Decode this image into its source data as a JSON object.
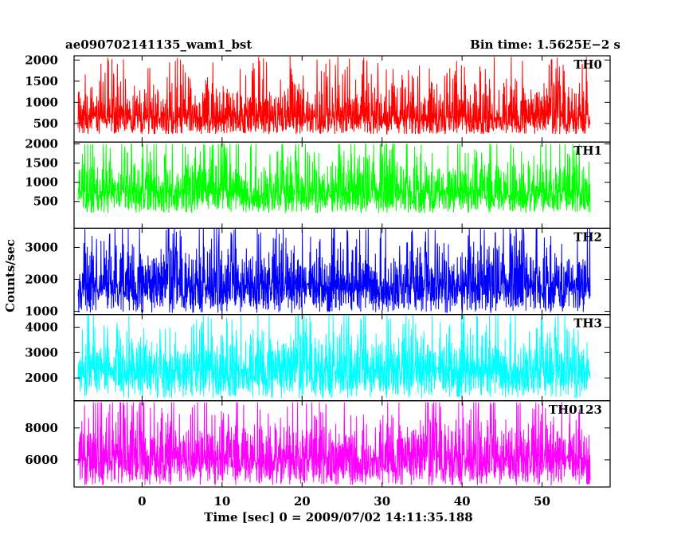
{
  "header": {
    "left_title": "ae090702141135_wam1_bst",
    "right_title": "Bin time: 1.5625E−2 s"
  },
  "chart_data": {
    "type": "line",
    "title": "ae090702141135_wam1_bst",
    "subtitle": "Bin time: 1.5625E−2 s",
    "xlabel": "Time [sec] 0 = 2009/07/02 14:11:35.188",
    "ylabel": "Counts/sec",
    "xlim": [
      -8.5,
      58.5
    ],
    "xticks": [
      0,
      10,
      20,
      30,
      40,
      50
    ],
    "data_x_range": [
      -8,
      56
    ],
    "grid": false,
    "series": [
      {
        "name": "TH0",
        "color": "#ff0000",
        "ylim": [
          60,
          2100
        ],
        "yticks": [
          500,
          1000,
          1500,
          2000
        ],
        "baseline": 900,
        "noise": 330,
        "low_spread": 200,
        "min": 250,
        "max": 2100
      },
      {
        "name": "TH1",
        "color": "#00ff00",
        "ylim": [
          -200,
          2050
        ],
        "yticks": [
          500,
          1000,
          1500,
          2000
        ],
        "baseline": 1000,
        "noise": 380,
        "low_spread": 180,
        "min": 200,
        "max": 2000
      },
      {
        "name": "TH2",
        "color": "#0000ff",
        "ylim": [
          900,
          3600
        ],
        "yticks": [
          1000,
          2000,
          3000
        ],
        "baseline": 2200,
        "noise": 450,
        "low_spread": 300,
        "min": 950,
        "max": 3600
      },
      {
        "name": "TH3",
        "color": "#00ffff",
        "ylim": [
          1100,
          4500
        ],
        "yticks": [
          2000,
          3000,
          4000
        ],
        "baseline": 2800,
        "noise": 550,
        "low_spread": 350,
        "min": 1200,
        "max": 4500
      },
      {
        "name": "TH0123",
        "color": "#ff00ff",
        "ylim": [
          4300,
          9700
        ],
        "yticks": [
          6000,
          8000
        ],
        "baseline": 6900,
        "noise": 950,
        "low_spread": 600,
        "min": 4400,
        "max": 9600
      }
    ]
  }
}
